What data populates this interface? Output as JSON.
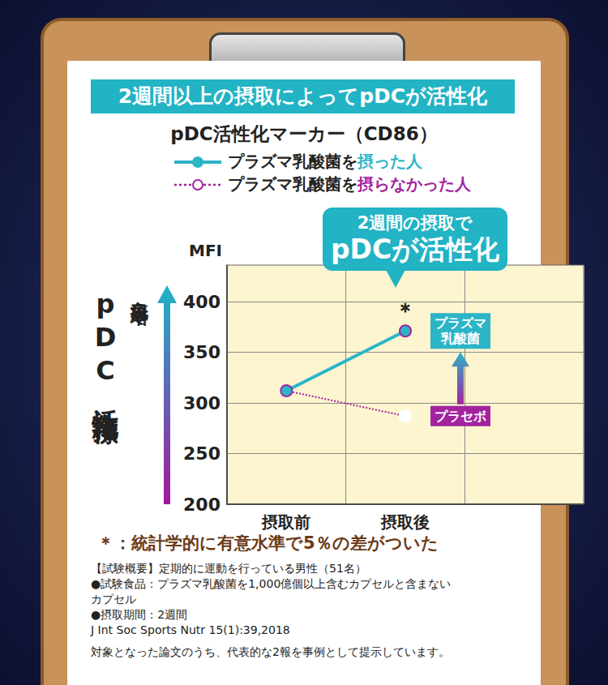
{
  "header": "2週間以上の摂取によってpDCが活性化",
  "chart_data": {
    "type": "line",
    "title": "pDC活性化マーカー（CD86）",
    "y_label": "MFI",
    "y_side_labels": [
      "pDC活性化指標",
      "免疫司令塔"
    ],
    "callout": [
      "2週間の摂取で",
      "pDCが活性化"
    ],
    "significance_mark": "＊",
    "end_labels": [
      "プラズマ乳酸菌",
      "プラセボ"
    ],
    "categories": [
      "摂取前",
      "摂取後",
      null
    ],
    "series": [
      {
        "name": "プラズマ乳酸菌を摂った人",
        "color": "#2bb5c6",
        "marker": "circle",
        "line_style": "solid",
        "values": [
          312,
          371,
          null
        ]
      },
      {
        "name": "プラズマ乳酸菌を摂らなかった人",
        "color": "#a3239f",
        "marker": "open_circle",
        "line_style": "dotted",
        "values": [
          312,
          287,
          null
        ]
      }
    ],
    "ylim": [
      200,
      436
    ],
    "yticks": [
      200,
      250,
      300,
      350,
      400
    ],
    "grid": true
  },
  "notes": {
    "significance": "＊：統計学的に有意水準で5％の差がついた",
    "details": [
      "【試験概要】定期的に運動を行っている男性（51名）",
      "●試験食品：プラズマ乳酸菌を1,000億個以上含むカプセルと含まないカプセル",
      "●摂取期間：2週間",
      "J Int Soc Sports Nutr 15(1):39,2018",
      "対象となった論文のうち、代表的な2報を事例として提示しています。"
    ]
  }
}
